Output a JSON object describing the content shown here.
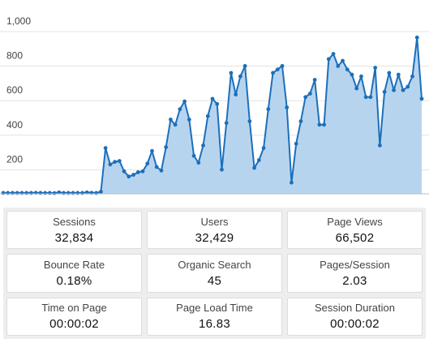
{
  "chart_data": {
    "type": "area",
    "title": "",
    "xlabel": "",
    "ylabel": "",
    "ylim": [
      0,
      1000
    ],
    "y_ticks": [
      200,
      400,
      600,
      800,
      1000
    ],
    "y_tick_labels": [
      "200",
      "400",
      "600",
      "800",
      "1,000"
    ],
    "grid": true,
    "colors": {
      "line": "#1c6fba",
      "fill": "#b7d4ef"
    },
    "series": [
      {
        "values": [
          5,
          5,
          5,
          5,
          5,
          5,
          5,
          6,
          5,
          5,
          5,
          4,
          8,
          5,
          5,
          5,
          5,
          5,
          8,
          6,
          5,
          12,
          265,
          170,
          185,
          190,
          130,
          100,
          110,
          125,
          130,
          175,
          248,
          155,
          135,
          270,
          430,
          400,
          490,
          535,
          430,
          220,
          180,
          280,
          450,
          550,
          520,
          140,
          410,
          700,
          575,
          680,
          740,
          420,
          150,
          195,
          265,
          490,
          700,
          720,
          740,
          500,
          65,
          290,
          420,
          560,
          580,
          660,
          400,
          400,
          780,
          810,
          740,
          770,
          720,
          690,
          610,
          680,
          560,
          560,
          730,
          280,
          590,
          700,
          600,
          690,
          600,
          620,
          680,
          905,
          550
        ]
      }
    ]
  },
  "metrics": [
    {
      "label": "Sessions",
      "value": "32,834"
    },
    {
      "label": "Users",
      "value": "32,429"
    },
    {
      "label": "Page Views",
      "value": "66,502"
    },
    {
      "label": "Bounce Rate",
      "value": "0.18%"
    },
    {
      "label": "Organic Search",
      "value": "45"
    },
    {
      "label": "Pages/Session",
      "value": "2.03"
    },
    {
      "label": "Time on Page",
      "value": "00:00:02"
    },
    {
      "label": "Page Load Time",
      "value": "16.83"
    },
    {
      "label": "Session Duration",
      "value": "00:00:02"
    }
  ]
}
